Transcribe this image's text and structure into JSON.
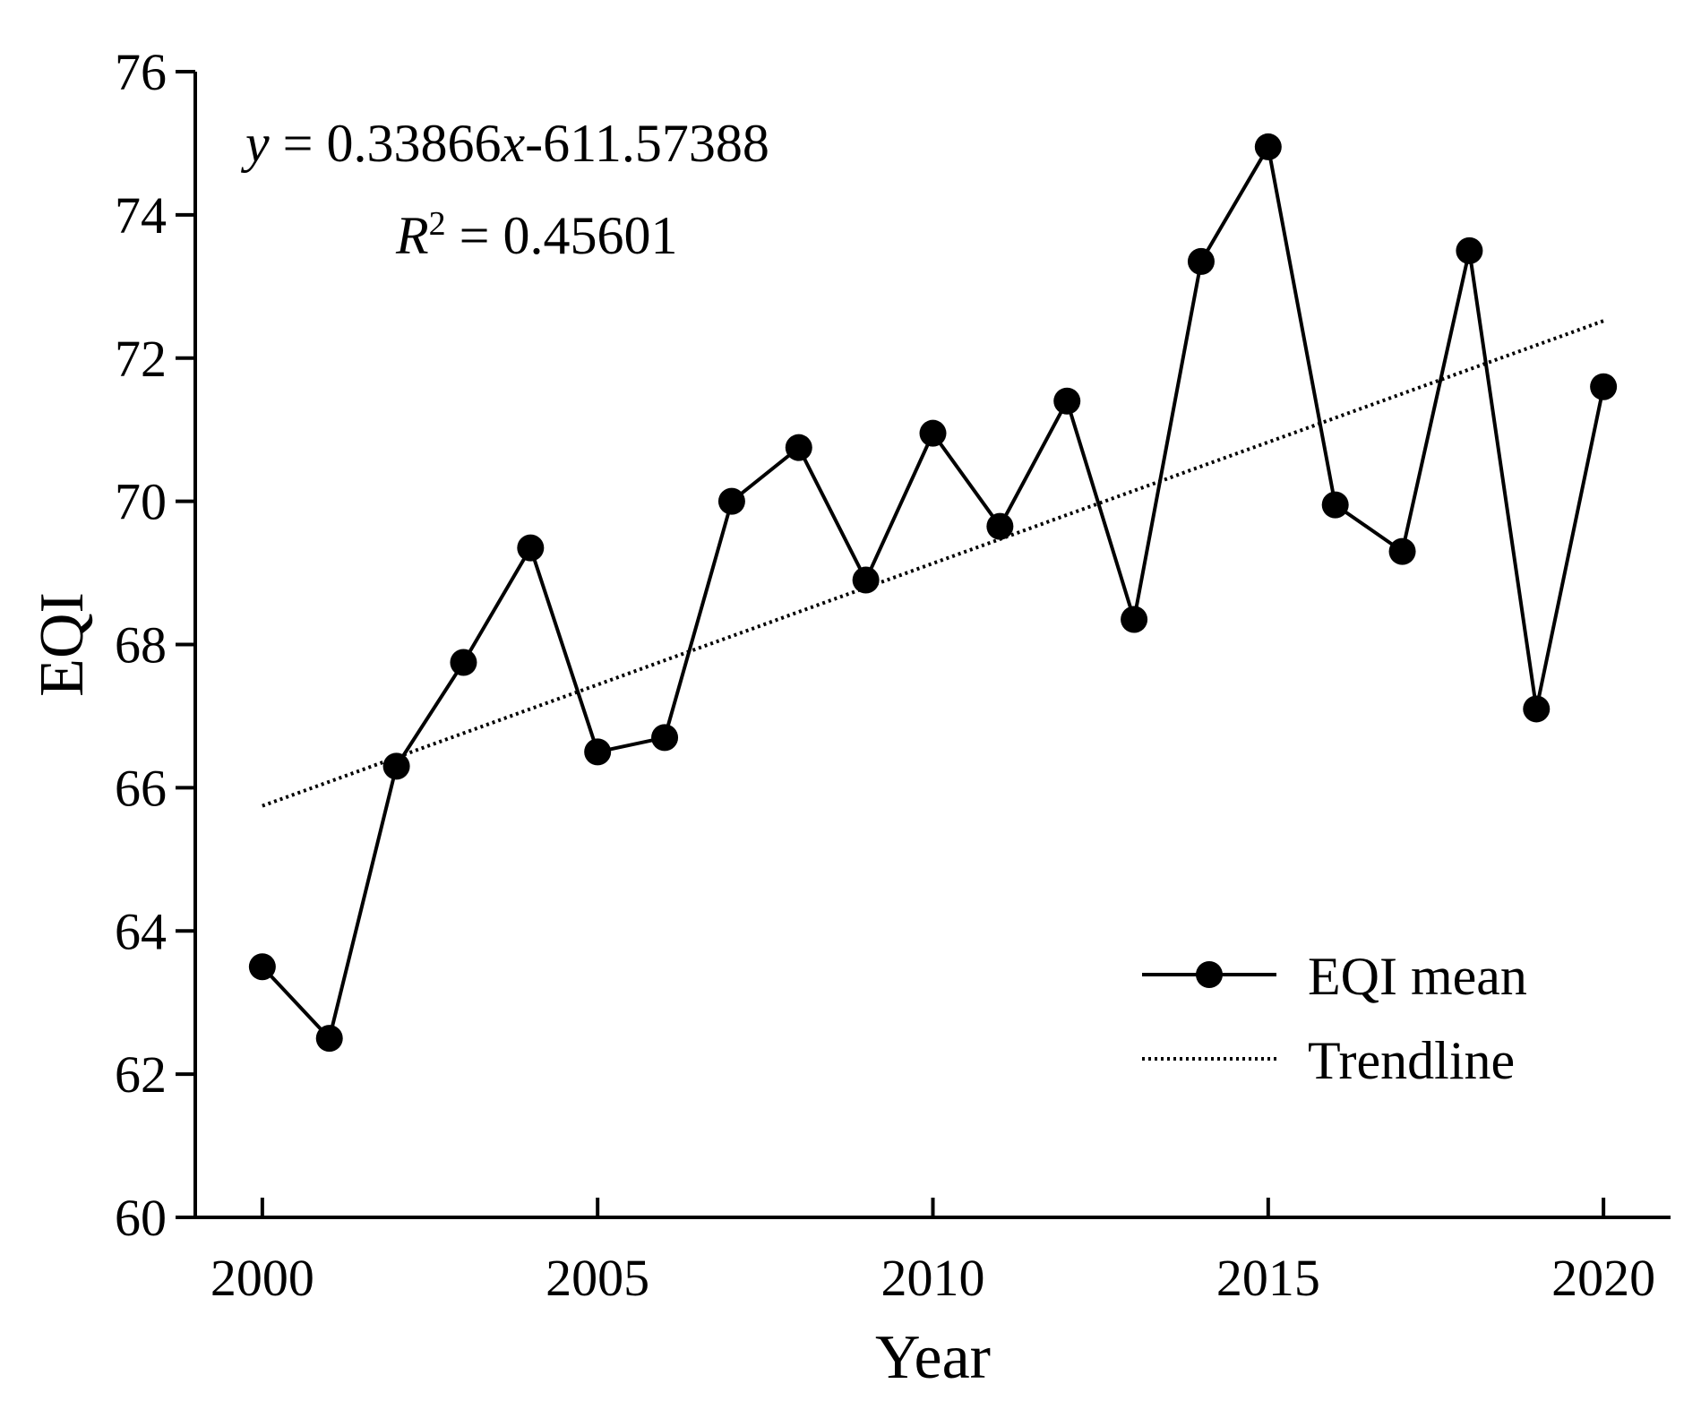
{
  "chart_data": {
    "type": "line",
    "title": "",
    "xlabel": "Year",
    "ylabel": "EQI",
    "xlim": [
      1999,
      2021
    ],
    "ylim": [
      60,
      76
    ],
    "xticks": [
      2000,
      2005,
      2010,
      2015,
      2020
    ],
    "yticks": [
      60,
      62,
      64,
      66,
      68,
      70,
      72,
      74,
      76
    ],
    "grid": false,
    "legend_position": "bottom-right",
    "x": [
      2000,
      2001,
      2002,
      2003,
      2004,
      2005,
      2006,
      2007,
      2008,
      2009,
      2010,
      2011,
      2012,
      2013,
      2014,
      2015,
      2016,
      2017,
      2018,
      2019,
      2020
    ],
    "series": [
      {
        "name": "EQI mean",
        "style": "solid-with-markers",
        "values": [
          63.5,
          62.5,
          66.3,
          67.75,
          69.35,
          66.5,
          66.7,
          70.0,
          70.75,
          68.9,
          70.95,
          69.65,
          71.4,
          68.35,
          73.35,
          74.95,
          69.95,
          69.3,
          73.5,
          67.1,
          71.6
        ]
      },
      {
        "name": "Trendline",
        "style": "dotted",
        "slope": 0.33866,
        "intercept": -611.57388,
        "x_range": [
          2000,
          2020
        ]
      }
    ],
    "annotations": {
      "equation_y": "y",
      "equation_rest": " = 0.33866",
      "equation_x": "x",
      "equation_tail": "-611.57388",
      "r2_symbol": "R",
      "r2_exp": "2",
      "r2_value": " = 0.45601"
    },
    "colors": {
      "line": "#000000",
      "marker": "#000000",
      "background": "#ffffff"
    }
  }
}
